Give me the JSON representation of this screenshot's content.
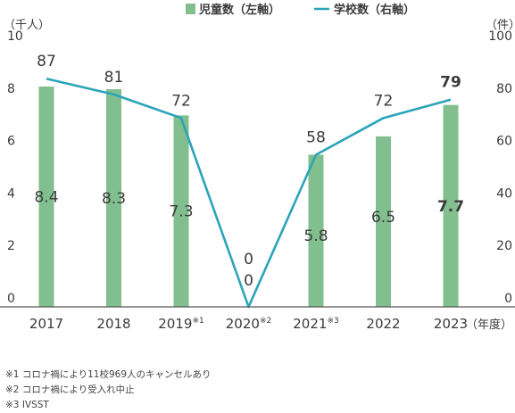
{
  "chart_data": {
    "type": "bar-line-combo",
    "categories": [
      "2017",
      "2018",
      "2019",
      "2020",
      "2021",
      "2022",
      "2023"
    ],
    "category_superscripts": [
      "",
      "",
      "※1",
      "※2",
      "※3",
      "",
      ""
    ],
    "series": [
      {
        "name": "児童数（左軸）",
        "type": "bar",
        "axis": "left",
        "color": "#82bf8f",
        "values": [
          8.4,
          8.3,
          7.3,
          0,
          5.8,
          6.5,
          7.7
        ],
        "labels": [
          "8.4",
          "8.3",
          "7.3",
          "0",
          "5.8",
          "6.5",
          "7.7"
        ]
      },
      {
        "name": "学校数（右軸）",
        "type": "line",
        "axis": "right",
        "color": "#2aa4b8",
        "values": [
          87,
          81,
          72,
          0,
          58,
          72,
          79
        ],
        "labels": [
          "87",
          "81",
          "72",
          "0",
          "58",
          "72",
          "79"
        ]
      }
    ],
    "left_axis": {
      "unit_label": "（千人）",
      "min": 0,
      "max": 10,
      "ticks": [
        "0",
        "2",
        "4",
        "6",
        "8",
        "10"
      ]
    },
    "right_axis": {
      "unit_label": "（件）",
      "min": 0,
      "max": 100,
      "ticks": [
        "0",
        "20",
        "40",
        "60",
        "80",
        "100"
      ]
    },
    "x_unit_label": "（年度）",
    "legend_position": "top-center",
    "highlight_last": true
  },
  "notes": [
    "※1 コロナ禍により11校969人のキャンセルあり",
    "※2 コロナ禍により受入れ中止",
    "※3 IVSST"
  ],
  "colors": {
    "bar": "#82bf8f",
    "line": "#2aa4b8",
    "axis": "#555555",
    "text": "#3a3a3a"
  }
}
